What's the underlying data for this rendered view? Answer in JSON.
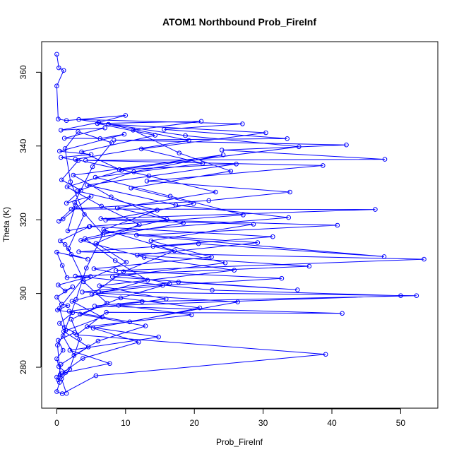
{
  "chart_data": {
    "type": "line",
    "title": "ATOM1 Northbound Prob_FireInf",
    "xlabel": "Prob_FireInf",
    "ylabel": "Theta (K)",
    "xlim": [
      -2.2,
      55.4
    ],
    "ylim": [
      268.9,
      368.3
    ],
    "x_ticks": [
      0,
      10,
      20,
      30,
      40,
      50
    ],
    "y_ticks": [
      280,
      300,
      320,
      340,
      360
    ],
    "grid": false,
    "legend": "none",
    "marker": "open-circle",
    "color": "#0000ff",
    "series": [
      {
        "points": [
          [
            0.0,
            364.9
          ],
          [
            0.3,
            361.2
          ],
          [
            1.0,
            360.5
          ],
          [
            0.0,
            356.3
          ],
          [
            0.2,
            347.3
          ],
          [
            1.4,
            346.9
          ],
          [
            10.0,
            348.3
          ],
          [
            6.1,
            346.4
          ],
          [
            0.6,
            344.3
          ],
          [
            7.0,
            344.9
          ],
          [
            1.1,
            342.1
          ],
          [
            6.3,
            342.0
          ],
          [
            9.8,
            343.2
          ],
          [
            0.4,
            338.6
          ],
          [
            5.0,
            337.7
          ],
          [
            0.6,
            336.9
          ],
          [
            3.1,
            336.0
          ],
          [
            0.7,
            330.8
          ],
          [
            3.5,
            328.0
          ],
          [
            1.4,
            324.5
          ],
          [
            5.0,
            326.4
          ],
          [
            0.9,
            320.2
          ],
          [
            0.3,
            319.6
          ],
          [
            2.7,
            323.9
          ],
          [
            1.6,
            317.0
          ],
          [
            4.7,
            318.1
          ],
          [
            0.5,
            314.3
          ],
          [
            1.2,
            313.3
          ],
          [
            2.1,
            310.6
          ],
          [
            4.5,
            309.3
          ],
          [
            0.0,
            311.2
          ],
          [
            0.8,
            307.6
          ],
          [
            1.5,
            304.3
          ],
          [
            4.9,
            304.6
          ],
          [
            0.2,
            302.3
          ],
          [
            1.2,
            300.7
          ],
          [
            2.3,
            301.8
          ],
          [
            0.0,
            299.0
          ],
          [
            0.7,
            297.1
          ],
          [
            1.6,
            296.7
          ],
          [
            0.1,
            295.5
          ],
          [
            2.3,
            294.8
          ],
          [
            0.4,
            291.9
          ],
          [
            1.1,
            290.8
          ],
          [
            2.6,
            289.4
          ],
          [
            0.2,
            287.3
          ],
          [
            0.9,
            284.6
          ],
          [
            0.0,
            282.3
          ],
          [
            0.3,
            280.2
          ],
          [
            1.3,
            278.6
          ],
          [
            0.0,
            277.3
          ],
          [
            0.4,
            275.9
          ],
          [
            0.0,
            273.4
          ],
          [
            0.8,
            272.8
          ],
          [
            5.7,
            277.7
          ],
          [
            39.1,
            283.5
          ],
          [
            2.9,
            288.8
          ],
          [
            7.2,
            294.9
          ],
          [
            41.5,
            294.6
          ],
          [
            5.5,
            296.6
          ],
          [
            12.4,
            297.8
          ],
          [
            52.3,
            299.4
          ],
          [
            6.1,
            300.4
          ],
          [
            15.4,
            302.2
          ],
          [
            32.7,
            304.1
          ],
          [
            8.6,
            306.2
          ],
          [
            53.4,
            309.3
          ],
          [
            3.2,
            311.3
          ],
          [
            20.6,
            313.5
          ],
          [
            47.6,
            310.0
          ],
          [
            11.6,
            315.8
          ],
          [
            40.8,
            318.5
          ],
          [
            6.4,
            320.3
          ],
          [
            46.3,
            322.8
          ],
          [
            2.1,
            322.9
          ],
          [
            22.1,
            325.2
          ],
          [
            33.9,
            327.5
          ],
          [
            13.1,
            330.5
          ],
          [
            38.7,
            334.7
          ],
          [
            4.2,
            336.1
          ],
          [
            47.7,
            336.4
          ],
          [
            24.0,
            338.9
          ],
          [
            42.1,
            340.3
          ],
          [
            8.3,
            341.6
          ],
          [
            33.5,
            342.0
          ],
          [
            15.6,
            344.5
          ],
          [
            27.0,
            346.0
          ],
          [
            3.2,
            347.2
          ],
          [
            18.7,
            342.8
          ],
          [
            35.2,
            339.8
          ],
          [
            9.1,
            333.6
          ],
          [
            26.1,
            335.1
          ],
          [
            4.4,
            329.4
          ],
          [
            17.3,
            324.0
          ],
          [
            33.7,
            320.6
          ],
          [
            6.9,
            316.6
          ],
          [
            29.2,
            313.8
          ],
          [
            11.7,
            310.4
          ],
          [
            36.7,
            307.4
          ],
          [
            2.7,
            304.7
          ],
          [
            22.6,
            300.9
          ],
          [
            50.0,
            299.4
          ],
          [
            9.0,
            296.8
          ],
          [
            19.6,
            294.2
          ],
          [
            4.4,
            291.0
          ],
          [
            14.8,
            288.2
          ],
          [
            1.9,
            284.6
          ],
          [
            7.7,
            281.0
          ],
          [
            0.8,
            278.4
          ],
          [
            3.8,
            282.4
          ],
          [
            11.9,
            286.8
          ],
          [
            5.3,
            290.6
          ],
          [
            26.3,
            297.7
          ],
          [
            3.7,
            300.4
          ],
          [
            17.7,
            303.1
          ],
          [
            35.0,
            301.0
          ],
          [
            8.1,
            304.5
          ],
          [
            24.5,
            308.3
          ],
          [
            14.0,
            312.8
          ],
          [
            31.4,
            315.4
          ],
          [
            4.8,
            318.2
          ],
          [
            27.1,
            321.3
          ],
          [
            16.5,
            326.4
          ],
          [
            5.6,
            331.5
          ],
          [
            21.2,
            335.3
          ],
          [
            12.3,
            339.2
          ],
          [
            30.4,
            343.6
          ],
          [
            7.5,
            345.9
          ],
          [
            19.2,
            341.5
          ],
          [
            2.7,
            336.4
          ],
          [
            13.4,
            331.9
          ],
          [
            23.1,
            327.5
          ],
          [
            8.8,
            323.2
          ],
          [
            18.4,
            319.1
          ],
          [
            3.5,
            314.4
          ],
          [
            12.7,
            309.8
          ],
          [
            25.8,
            306.3
          ],
          [
            6.2,
            302.1
          ],
          [
            15.9,
            298.5
          ],
          [
            1.8,
            295.2
          ],
          [
            10.6,
            292.3
          ],
          [
            20.8,
            296.1
          ],
          [
            5.1,
            299.8
          ],
          [
            9.7,
            305.9
          ],
          [
            17.1,
            311.6
          ],
          [
            6.8,
            317.3
          ],
          [
            14.6,
            322.6
          ],
          [
            3.0,
            327.8
          ],
          [
            11.2,
            333.0
          ],
          [
            24.2,
            337.6
          ],
          [
            2.4,
            332.1
          ],
          [
            7.9,
            326.2
          ],
          [
            16.0,
            320.1
          ],
          [
            4.1,
            314.9
          ],
          [
            8.5,
            308.9
          ],
          [
            13.2,
            303.6
          ],
          [
            2.2,
            297.9
          ],
          [
            6.6,
            293.6
          ],
          [
            1.0,
            289.7
          ],
          [
            4.6,
            285.5
          ],
          [
            0.6,
            280.8
          ],
          [
            0.2,
            276.6
          ],
          [
            0.7,
            276.9
          ],
          [
            1.9,
            279.5
          ],
          [
            3.3,
            287.6
          ],
          [
            2.1,
            293.0
          ],
          [
            7.3,
            297.4
          ],
          [
            3.9,
            303.2
          ],
          [
            10.1,
            308.5
          ],
          [
            5.7,
            313.6
          ],
          [
            12.0,
            318.7
          ],
          [
            6.5,
            323.7
          ],
          [
            1.5,
            328.9
          ],
          [
            9.4,
            333.4
          ],
          [
            3.6,
            338.4
          ],
          [
            14.3,
            342.9
          ],
          [
            5.9,
            346.1
          ],
          [
            21.0,
            346.7
          ],
          [
            11.1,
            344.3
          ],
          [
            17.8,
            338.1
          ],
          [
            25.3,
            333.2
          ],
          [
            10.8,
            328.6
          ],
          [
            19.9,
            324.4
          ],
          [
            7.1,
            319.9
          ],
          [
            28.6,
            318.8
          ],
          [
            13.7,
            314.3
          ],
          [
            22.5,
            309.9
          ],
          [
            5.4,
            306.7
          ],
          [
            16.4,
            302.7
          ],
          [
            9.3,
            298.8
          ],
          [
            3.4,
            294.4
          ],
          [
            12.9,
            291.2
          ],
          [
            6.0,
            287.1
          ],
          [
            2.5,
            283.2
          ],
          [
            0.9,
            288.5
          ],
          [
            2.8,
            298.4
          ],
          [
            4.3,
            306.9
          ],
          [
            6.7,
            316.0
          ],
          [
            2.6,
            324.7
          ],
          [
            5.2,
            334.4
          ],
          [
            8.0,
            340.9
          ],
          [
            3.1,
            343.9
          ],
          [
            1.2,
            339.3
          ],
          [
            2.0,
            330.3
          ],
          [
            4.0,
            321.5
          ],
          [
            1.7,
            312.2
          ],
          [
            3.8,
            304.0
          ],
          [
            0.4,
            296.0
          ],
          [
            1.3,
            290.0
          ],
          [
            0.1,
            286.0
          ],
          [
            0.5,
            278.0
          ],
          [
            1.4,
            272.9
          ]
        ]
      }
    ]
  }
}
